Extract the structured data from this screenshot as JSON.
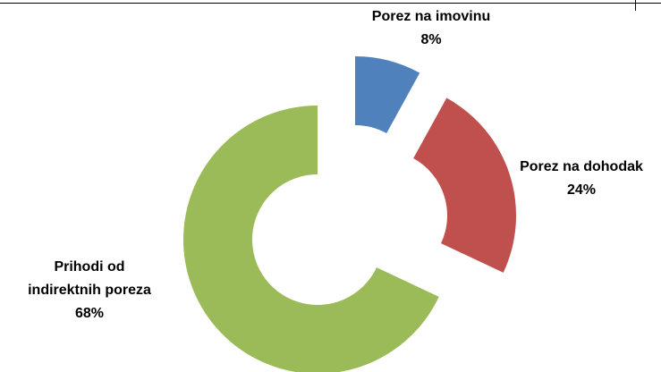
{
  "chart_data": {
    "type": "donut",
    "categories": [
      "Porez na imovinu",
      "Porez na dohodak",
      "Prihodi od indirektnih poreza"
    ],
    "values": [
      8,
      24,
      68
    ],
    "value_labels": [
      "8%",
      "24%",
      "68%"
    ],
    "colors": [
      "#4f81bd",
      "#c0504d",
      "#9bbb59"
    ]
  }
}
